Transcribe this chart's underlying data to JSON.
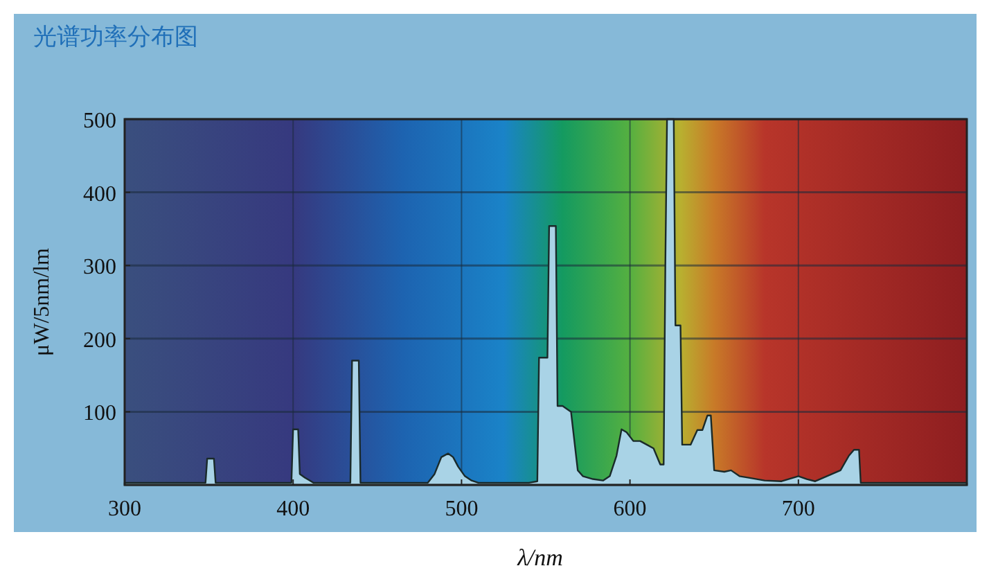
{
  "chart_data": {
    "type": "area",
    "title": "光谱功率分布图",
    "xlabel": "λ/nm",
    "ylabel": "μW/5nm/lm",
    "x": [
      300,
      348,
      349,
      353,
      354,
      399,
      400,
      403,
      404,
      407,
      410,
      412,
      434,
      435,
      439,
      440,
      480,
      484,
      488,
      492,
      495,
      498,
      502,
      506,
      510,
      540,
      545,
      546,
      551,
      552,
      556,
      557,
      560,
      565,
      569,
      572,
      578,
      584,
      588,
      592,
      595,
      598,
      602,
      606,
      610,
      614,
      618,
      620,
      621,
      622,
      626,
      627,
      630,
      631,
      636,
      640,
      643,
      646,
      648,
      650,
      656,
      660,
      665,
      670,
      680,
      690,
      700,
      705,
      710,
      720,
      725,
      730,
      733,
      736,
      737,
      740,
      760,
      800
    ],
    "values": [
      3,
      3,
      36,
      36,
      3,
      3,
      76,
      76,
      15,
      10,
      6,
      3,
      3,
      170,
      170,
      3,
      3,
      15,
      38,
      43,
      38,
      25,
      12,
      6,
      3,
      3,
      5,
      174,
      174,
      354,
      354,
      108,
      108,
      100,
      20,
      12,
      8,
      6,
      12,
      40,
      76,
      72,
      60,
      60,
      55,
      50,
      28,
      28,
      300,
      500,
      500,
      218,
      218,
      55,
      55,
      75,
      75,
      95,
      95,
      20,
      18,
      20,
      12,
      10,
      6,
      5,
      12,
      8,
      5,
      15,
      20,
      40,
      48,
      48,
      3,
      3,
      3,
      3
    ],
    "color": "#a9d3e6",
    "xlim": [
      300,
      800
    ],
    "ylim": [
      0,
      500
    ],
    "xticks": [
      300,
      400,
      500,
      600,
      700
    ],
    "yticks": [
      100,
      200,
      300,
      400,
      500
    ],
    "grid": true
  }
}
